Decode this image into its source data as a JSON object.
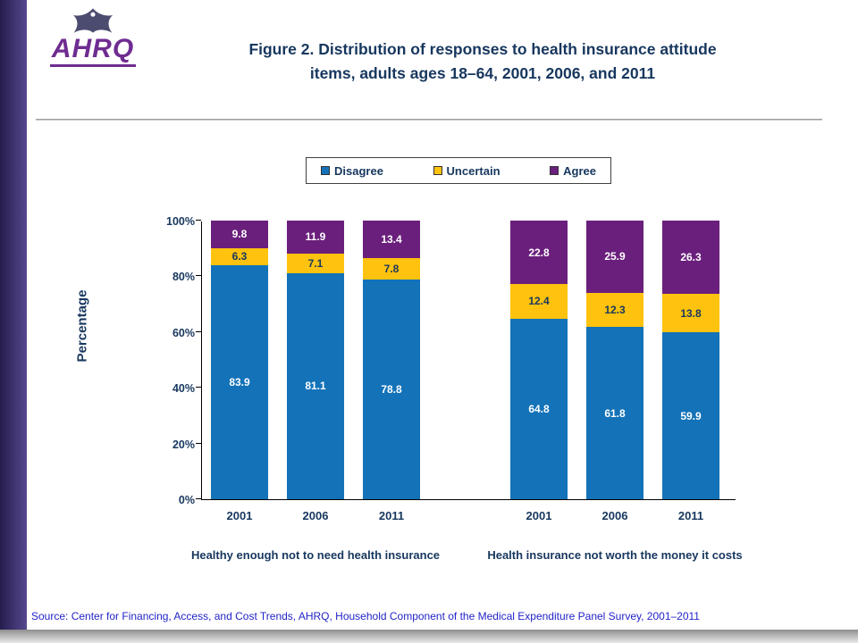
{
  "header": {
    "logo_text": "AHRQ",
    "title_line1": "Figure 2. Distribution of responses to health insurance attitude",
    "title_line2": "items, adults ages 18–64, 2001, 2006, and 2011"
  },
  "legend": {
    "items": [
      {
        "label": "Disagree",
        "color": "#1372b8"
      },
      {
        "label": "Uncertain",
        "color": "#ffc20e"
      },
      {
        "label": "Agree",
        "color": "#6b1f7c"
      }
    ]
  },
  "chart_data": {
    "type": "bar",
    "stacked": true,
    "title": "Figure 2. Distribution of responses to health insurance attitude items, adults ages 18–64, 2001, 2006, and 2011",
    "ylabel": "Percentage",
    "ylim": [
      0,
      100
    ],
    "yticks": [
      "0%",
      "20%",
      "40%",
      "60%",
      "80%",
      "100%"
    ],
    "grid": false,
    "legend_position": "top",
    "groups": [
      {
        "label": "Healthy enough not to need health insurance",
        "categories": [
          "2001",
          "2006",
          "2011"
        ],
        "series": [
          {
            "name": "Disagree",
            "values": [
              83.9,
              81.1,
              78.8
            ]
          },
          {
            "name": "Uncertain",
            "values": [
              6.3,
              7.1,
              7.8
            ]
          },
          {
            "name": "Agree",
            "values": [
              9.8,
              11.9,
              13.4
            ]
          }
        ]
      },
      {
        "label": "Health insurance not worth the money it costs",
        "categories": [
          "2001",
          "2006",
          "2011"
        ],
        "series": [
          {
            "name": "Disagree",
            "values": [
              64.8,
              61.8,
              59.9
            ]
          },
          {
            "name": "Uncertain",
            "values": [
              12.4,
              12.3,
              13.8
            ]
          },
          {
            "name": "Agree",
            "values": [
              22.8,
              25.9,
              26.3
            ]
          }
        ]
      }
    ],
    "colors": {
      "Disagree": "#1372b8",
      "Uncertain": "#ffc20e",
      "Agree": "#6b1f7c"
    },
    "label_colors": {
      "Disagree": "#ffffff",
      "Uncertain": "#17375e",
      "Agree": "#ffffff"
    }
  },
  "footer": {
    "source": "Source: Center for Financing, Access, and Cost Trends, AHRQ, Household Component of the Medical Expenditure Panel Survey, 2001–2011"
  }
}
